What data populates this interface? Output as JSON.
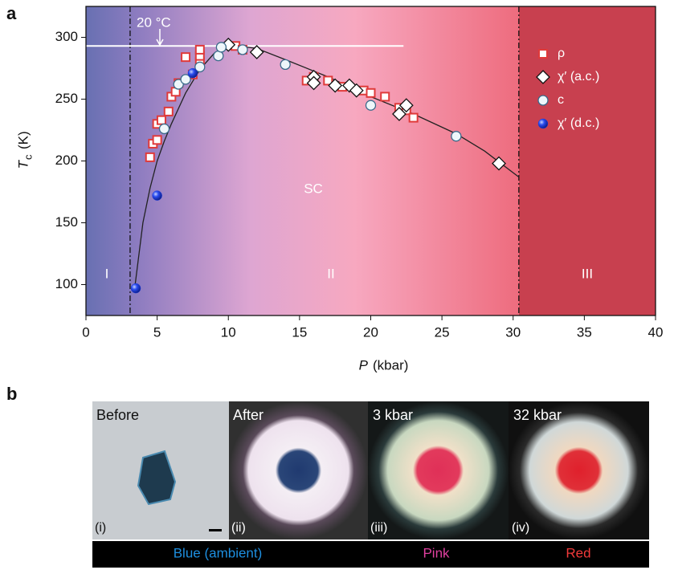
{
  "chart_data": {
    "type": "scatter",
    "panel": "a",
    "x_label_symbol": "P",
    "x_label_unit": "(kbar)",
    "y_label_symbol": "T",
    "y_label_subscript": "c",
    "y_label_unit": "(K)",
    "xlim": [
      0,
      40
    ],
    "xticks": [
      0,
      5,
      10,
      15,
      20,
      25,
      30,
      35,
      40
    ],
    "ylim": [
      75,
      325
    ],
    "yticks": [
      100,
      150,
      200,
      250,
      300
    ],
    "phase_boundaries": [
      3.1,
      30.4
    ],
    "region_labels": [
      "I",
      "II",
      "III"
    ],
    "phase_label": "SC",
    "room_temperature_line": {
      "label": "20 °C",
      "y": 293,
      "x_end": 22.3
    },
    "series": [
      {
        "style": "line",
        "color": "#222222",
        "x": [
          3.4,
          4.0,
          4.5,
          5.0,
          5.5,
          6.0,
          7.0,
          8.0,
          9.0,
          10.0,
          12.0,
          14.0,
          17.0,
          20.0,
          23.0,
          26.0,
          28.0,
          30.4
        ],
        "values": [
          95,
          150,
          178,
          200,
          216,
          230,
          255,
          274,
          287,
          294,
          291,
          282,
          268,
          252,
          238,
          222,
          208,
          187
        ]
      },
      {
        "name": "ρ",
        "marker": "square",
        "color": "#e03a3a",
        "x": [
          4.5,
          4.7,
          5.0,
          5.0,
          5.3,
          5.8,
          6.0,
          6.3,
          6.5,
          7.0,
          7.5,
          8.0,
          8.0,
          8.0,
          10.5,
          11.0,
          15.5,
          16.0,
          17.0,
          18.0,
          19.5,
          20.0,
          21.0,
          22.0,
          22.5,
          23.0
        ],
        "values": [
          203,
          214,
          217,
          230,
          233,
          240,
          252,
          256,
          263,
          284,
          270,
          280,
          285,
          290,
          293,
          290,
          265,
          268,
          265,
          260,
          257,
          255,
          252,
          243,
          241,
          235
        ]
      },
      {
        "name": "χ′ (a.c.)",
        "marker": "diamond",
        "color": "#111111",
        "x": [
          10.0,
          12.0,
          16.0,
          16.0,
          17.5,
          18.5,
          19.0,
          22.0,
          22.5,
          29.0
        ],
        "values": [
          294,
          288,
          268,
          263,
          261,
          261,
          257,
          238,
          245,
          198
        ]
      },
      {
        "name": "c",
        "marker": "circle",
        "color": "#3a6a8a",
        "x": [
          5.5,
          6.5,
          7.0,
          8.0,
          9.3,
          9.5,
          11.0,
          14.0,
          20.0,
          26.0
        ],
        "values": [
          226,
          262,
          266,
          276,
          285,
          292,
          290,
          278,
          245,
          220
        ]
      },
      {
        "name": "χ′ (d.c.)",
        "marker": "sphere",
        "color": "#1f3fe0",
        "x": [
          3.5,
          5.0,
          7.5
        ],
        "values": [
          97,
          172,
          271
        ]
      }
    ]
  },
  "panel_b": {
    "panel": "b",
    "images": [
      {
        "title": "Before",
        "index": "(i)"
      },
      {
        "title": "After",
        "index": "(ii)"
      },
      {
        "title": "3 kbar",
        "index": "(iii)"
      },
      {
        "title": "32 kbar",
        "index": "(iv)"
      }
    ],
    "color_states": [
      "Blue (ambient)",
      "Pink",
      "Red"
    ]
  }
}
